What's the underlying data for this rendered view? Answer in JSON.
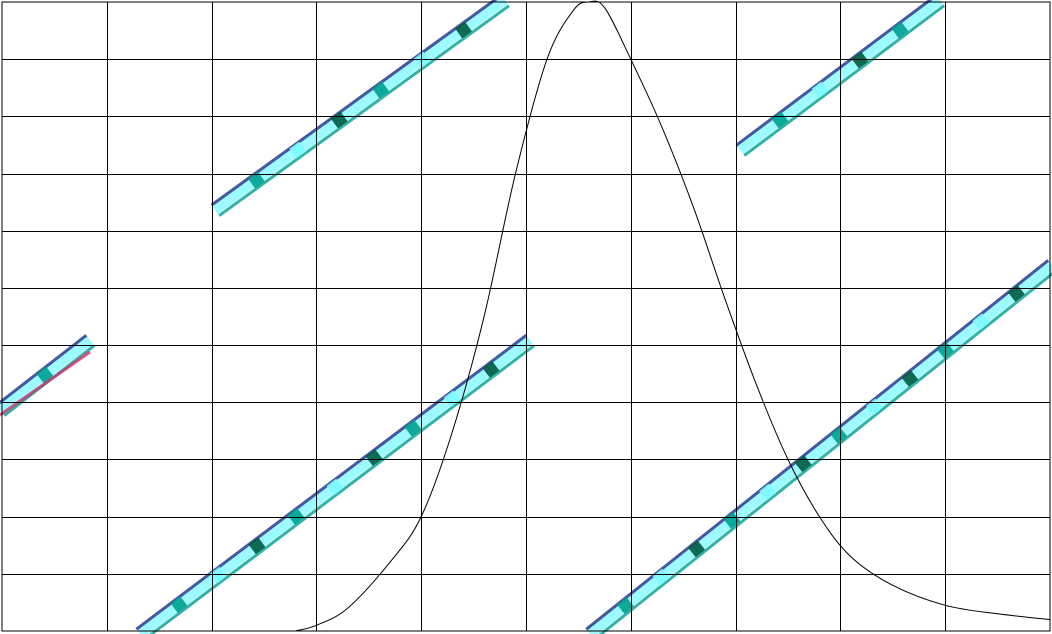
{
  "chart_data": {
    "type": "line",
    "title": "",
    "xlabel": "",
    "ylabel": "",
    "grid": true,
    "xlim": [
      0,
      10
    ],
    "ylim": [
      0,
      11
    ],
    "x_divisions": 10,
    "y_divisions": 11,
    "series": [
      {
        "color": "#000000",
        "points": [
          [
            2.8,
            0.0
          ],
          [
            3.0,
            0.1
          ],
          [
            3.3,
            0.4
          ],
          [
            3.7,
            1.2
          ],
          [
            4.0,
            2.0
          ],
          [
            4.3,
            3.5
          ],
          [
            4.6,
            5.5
          ],
          [
            4.9,
            8.0
          ],
          [
            5.2,
            10.0
          ],
          [
            5.45,
            10.85
          ],
          [
            5.6,
            11.0
          ],
          [
            5.75,
            10.9
          ],
          [
            6.0,
            10.0
          ],
          [
            6.3,
            8.8
          ],
          [
            6.6,
            7.4
          ],
          [
            6.9,
            5.8
          ],
          [
            7.2,
            4.3
          ],
          [
            7.5,
            3.0
          ],
          [
            7.8,
            2.0
          ],
          [
            8.1,
            1.3
          ],
          [
            8.5,
            0.8
          ],
          [
            9.0,
            0.45
          ],
          [
            9.5,
            0.3
          ],
          [
            10.0,
            0.2
          ]
        ]
      }
    ]
  },
  "watermark": {
    "colors": {
      "cyan": "#7df9ff",
      "teal": "#00a090",
      "dark_green": "#005a40",
      "navy": "#1a2e8a",
      "magenta": "#d0306a",
      "dark": "#222222"
    }
  }
}
